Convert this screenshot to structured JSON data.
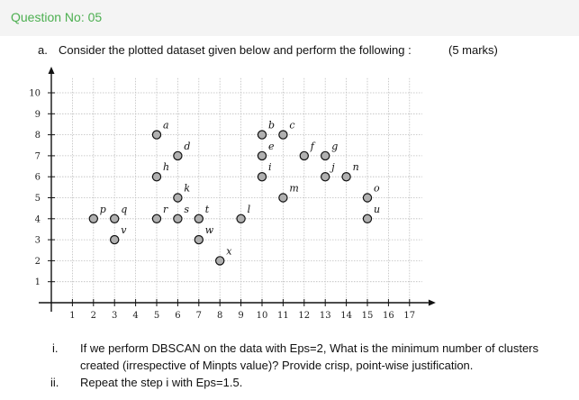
{
  "question_title": "Question No: 05",
  "part_a": {
    "label": "a.",
    "text": "Consider the plotted dataset given below and perform the following :",
    "marks": "(5 marks)"
  },
  "chart_data": {
    "type": "scatter",
    "xlim": [
      0,
      18
    ],
    "ylim": [
      0,
      10
    ],
    "x_ticks": [
      1,
      2,
      3,
      4,
      5,
      6,
      7,
      8,
      9,
      10,
      11,
      12,
      13,
      14,
      15,
      16,
      17
    ],
    "y_ticks": [
      1,
      2,
      3,
      4,
      5,
      6,
      7,
      8,
      9,
      10
    ],
    "grid": true,
    "points": [
      {
        "label": "a",
        "x": 5,
        "y": 8
      },
      {
        "label": "b",
        "x": 10,
        "y": 8
      },
      {
        "label": "c",
        "x": 11,
        "y": 8
      },
      {
        "label": "d",
        "x": 6,
        "y": 7
      },
      {
        "label": "e",
        "x": 10,
        "y": 7
      },
      {
        "label": "f",
        "x": 12,
        "y": 7
      },
      {
        "label": "g",
        "x": 13,
        "y": 7
      },
      {
        "label": "h",
        "x": 5,
        "y": 6
      },
      {
        "label": "i",
        "x": 10,
        "y": 6
      },
      {
        "label": "j",
        "x": 13,
        "y": 6
      },
      {
        "label": "n",
        "x": 14,
        "y": 6
      },
      {
        "label": "k",
        "x": 6,
        "y": 5
      },
      {
        "label": "m",
        "x": 11,
        "y": 5
      },
      {
        "label": "o",
        "x": 15,
        "y": 5
      },
      {
        "label": "p",
        "x": 2,
        "y": 4
      },
      {
        "label": "q",
        "x": 3,
        "y": 4
      },
      {
        "label": "r",
        "x": 5,
        "y": 4
      },
      {
        "label": "s",
        "x": 6,
        "y": 4
      },
      {
        "label": "t",
        "x": 7,
        "y": 4
      },
      {
        "label": "l",
        "x": 9,
        "y": 4
      },
      {
        "label": "u",
        "x": 15,
        "y": 4
      },
      {
        "label": "v",
        "x": 3,
        "y": 3
      },
      {
        "label": "w",
        "x": 7,
        "y": 3
      },
      {
        "label": "x",
        "x": 8,
        "y": 2
      }
    ]
  },
  "questions": [
    {
      "numeral": "i.",
      "text": "If we perform DBSCAN on the data with Eps=2, What is the minimum number of clusters created (irrespective of Minpts value)? Provide crisp, point-wise justification."
    },
    {
      "numeral": "ii.",
      "text": "Repeat the step i with Eps=1.5."
    }
  ]
}
